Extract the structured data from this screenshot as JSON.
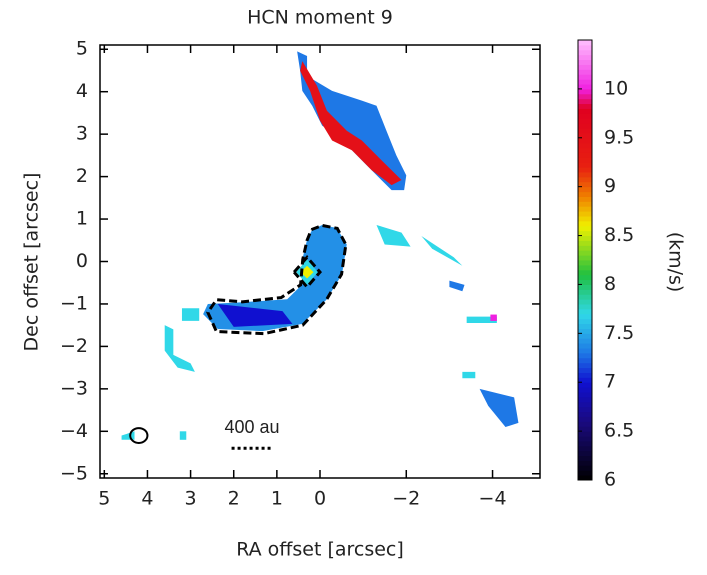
{
  "chart_data": {
    "type": "velocity-map",
    "title": "HCN moment 9",
    "x_label": "RA offset [arcsec]",
    "y_label": "Dec offset [arcsec]",
    "colorbar_label": "(km/s)",
    "xlim": [
      5.1,
      -5.1
    ],
    "ylim": [
      -5.1,
      5.1
    ],
    "xticks": [
      5,
      4,
      3,
      2,
      1,
      0,
      {
        "value": -2,
        "label": "−2"
      },
      {
        "value": -4,
        "label": "−4"
      }
    ],
    "yticks": [
      5,
      4,
      3,
      2,
      1,
      0,
      {
        "value": -1,
        "label": "−1"
      },
      {
        "value": -2,
        "label": "−2"
      },
      {
        "value": -3,
        "label": "−3"
      },
      {
        "value": -4,
        "label": "−4"
      },
      {
        "value": -5,
        "label": "−5"
      }
    ],
    "clim": [
      6,
      10.5
    ],
    "cticks": [
      10,
      9.5,
      9,
      8.5,
      8,
      7.5,
      7,
      6.5,
      6
    ],
    "colormap": [
      {
        "value": 6,
        "color": "#000000"
      },
      {
        "value": 6.6,
        "color": "#1a0a80"
      },
      {
        "value": 7.0,
        "color": "#1010d0"
      },
      {
        "value": 7.3,
        "color": "#1e78e6"
      },
      {
        "value": 7.7,
        "color": "#30d8e8"
      },
      {
        "value": 8.1,
        "color": "#20c040"
      },
      {
        "value": 8.6,
        "color": "#f0f000"
      },
      {
        "value": 8.9,
        "color": "#f08000"
      },
      {
        "value": 9.2,
        "color": "#e82010"
      },
      {
        "value": 9.8,
        "color": "#e00020"
      },
      {
        "value": 10.0,
        "color": "#f020e0"
      },
      {
        "value": 10.5,
        "color": "#ffc0ff"
      }
    ],
    "regions": [
      {
        "value": 7.4,
        "x": [
          0.18,
          -0.05,
          -0.39,
          -0.62,
          -0.51,
          -0.16,
          0.41,
          1.33,
          2.37,
          2.71,
          2.6,
          1.79,
          0.76,
          0.41,
          0.41,
          0.3
        ],
        "y": [
          0.75,
          0.86,
          0.79,
          0.4,
          -0.3,
          -0.89,
          -1.47,
          -1.64,
          -1.59,
          -1.24,
          -1.0,
          -0.96,
          -0.89,
          -0.54,
          0.05,
          0.51
        ]
      },
      {
        "value": 7.0,
        "x": [
          2.37,
          0.87,
          0.64,
          2.0
        ],
        "y": [
          -1.0,
          -1.17,
          -1.47,
          -1.54
        ]
      },
      {
        "value": 7.7,
        "x": [
          0.55,
          0.3,
          0.05,
          0.3
        ],
        "y": [
          -0.25,
          0.05,
          -0.25,
          -0.55
        ]
      },
      {
        "value": 8.6,
        "x": [
          0.45,
          0.3,
          0.15,
          0.3
        ],
        "y": [
          -0.25,
          -0.1,
          -0.25,
          -0.4
        ]
      },
      {
        "value": 7.3,
        "x": [
          0.53,
          0.3,
          0.3,
          -0.28,
          -0.97,
          -1.31,
          -1.54,
          -1.77,
          -2.0,
          -1.95,
          -1.66,
          -1.08,
          -0.74,
          -0.39,
          -0.05,
          0.18,
          0.41,
          0.46
        ],
        "y": [
          4.95,
          4.84,
          4.37,
          4.02,
          3.79,
          3.67,
          3.08,
          2.5,
          2.03,
          1.68,
          1.68,
          2.27,
          2.62,
          2.97,
          3.2,
          3.67,
          4.02,
          4.49
        ]
      },
      {
        "value": 9.5,
        "x": [
          0.41,
          0.07,
          -0.16,
          -0.62,
          -0.97,
          -1.54,
          -1.89,
          -1.66,
          -1.2,
          -0.74,
          -0.28,
          0,
          0.23,
          0.46
        ],
        "y": [
          4.72,
          4.14,
          3.55,
          3.08,
          2.85,
          2.27,
          1.92,
          1.8,
          2.15,
          2.62,
          2.85,
          3.32,
          4.02,
          4.49
        ]
      },
      {
        "value": 7.7,
        "x": [
          -1.31,
          -1.89,
          -2.1,
          -1.5
        ],
        "y": [
          0.86,
          0.68,
          0.35,
          0.4
        ]
      },
      {
        "value": 7.7,
        "x": [
          -2.35,
          -3.1,
          -3.3,
          -2.6
        ],
        "y": [
          0.6,
          0.1,
          -0.1,
          0.3
        ]
      },
      {
        "value": 7.3,
        "x": [
          -3.0,
          -3.35,
          -3.3,
          -3.0
        ],
        "y": [
          -0.45,
          -0.55,
          -0.7,
          -0.6
        ]
      },
      {
        "value": 7.7,
        "x": [
          -3.4,
          -4.1,
          -4.1,
          -3.4
        ],
        "y": [
          -1.3,
          -1.3,
          -1.45,
          -1.45
        ]
      },
      {
        "value": 10.0,
        "x": [
          -3.95,
          -4.1,
          -4.1,
          -3.95
        ],
        "y": [
          -1.25,
          -1.25,
          -1.4,
          -1.4
        ]
      },
      {
        "value": 7.3,
        "x": [
          -3.7,
          -4.5,
          -4.6,
          -4.3,
          -3.9
        ],
        "y": [
          -3.0,
          -3.2,
          -3.8,
          -3.9,
          -3.4
        ]
      },
      {
        "value": 7.7,
        "x": [
          -3.3,
          -3.6,
          -3.6,
          -3.3
        ],
        "y": [
          -2.6,
          -2.6,
          -2.75,
          -2.75
        ]
      },
      {
        "value": 7.7,
        "x": [
          3.6,
          3.4,
          3.4,
          3.0,
          2.9,
          3.3,
          3.6
        ],
        "y": [
          -1.5,
          -1.6,
          -2.2,
          -2.4,
          -2.6,
          -2.5,
          -2.1
        ]
      },
      {
        "value": 7.7,
        "x": [
          3.2,
          2.8,
          2.8,
          3.2
        ],
        "y": [
          -1.1,
          -1.1,
          -1.4,
          -1.4
        ]
      },
      {
        "value": 7.7,
        "x": [
          4.6,
          4.3,
          4.3,
          4.6
        ],
        "y": [
          -4.1,
          -4.0,
          -4.2,
          -4.2
        ]
      },
      {
        "value": 7.7,
        "x": [
          3.25,
          3.1,
          3.1,
          3.25
        ],
        "y": [
          -4.0,
          -4.0,
          -4.2,
          -4.2
        ]
      }
    ],
    "contours": [
      {
        "x": [
          0.2,
          -0.05,
          -0.4,
          -0.6,
          -0.5,
          -0.15,
          0.4,
          1.3,
          2.4,
          2.6,
          2.4,
          1.8,
          0.9,
          0.45,
          0.4,
          0.3,
          0.2
        ],
        "y": [
          0.75,
          0.85,
          0.78,
          0.4,
          -0.3,
          -0.9,
          -1.5,
          -1.7,
          -1.65,
          -1.2,
          -0.9,
          -0.95,
          -0.85,
          -0.55,
          0.05,
          0.5,
          0.75
        ]
      },
      {
        "x": [
          0.6,
          0.3,
          0.0,
          0.3,
          0.6
        ],
        "y": [
          -0.25,
          0.1,
          -0.25,
          -0.6,
          -0.25
        ]
      }
    ],
    "beam": {
      "x": 4.2,
      "y": -4.1,
      "width": 0.4,
      "height": 0.35
    },
    "scale_bar": {
      "label": "400 au",
      "x": [
        2.05,
        1.1
      ],
      "y": -4.4
    }
  }
}
